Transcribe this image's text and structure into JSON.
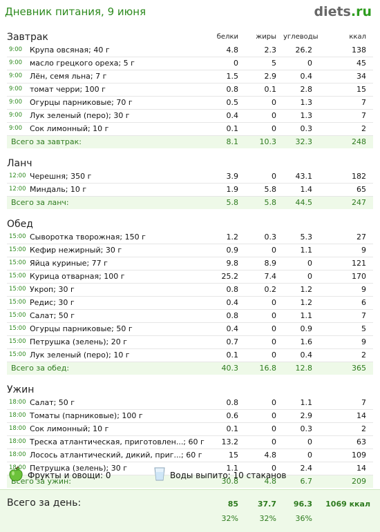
{
  "header": {
    "title": "Дневник питания, 9 июня",
    "logo_main": "diets",
    "logo_tld": ".ru"
  },
  "columns": {
    "protein": "белки",
    "fat": "жиры",
    "carbs": "углеводы",
    "kcal": "ккал"
  },
  "meals": [
    {
      "title": "Завтрак",
      "items": [
        {
          "time": "9:00",
          "name": "Крупа овсяная; 40 г",
          "p": "4.8",
          "f": "2.3",
          "c": "26.2",
          "k": "138"
        },
        {
          "time": "9:00",
          "name": "масло грецкого ореха; 5 г",
          "p": "0",
          "f": "5",
          "c": "0",
          "k": "45"
        },
        {
          "time": "9:00",
          "name": "Лён, семя льна; 7 г",
          "p": "1.5",
          "f": "2.9",
          "c": "0.4",
          "k": "34"
        },
        {
          "time": "9:00",
          "name": "томат черри; 100 г",
          "p": "0.8",
          "f": "0.1",
          "c": "2.8",
          "k": "15"
        },
        {
          "time": "9:00",
          "name": "Огурцы парниковые; 70 г",
          "p": "0.5",
          "f": "0",
          "c": "1.3",
          "k": "7"
        },
        {
          "time": "9:00",
          "name": "Лук зеленый (перо); 30 г",
          "p": "0.4",
          "f": "0",
          "c": "1.3",
          "k": "7"
        },
        {
          "time": "9:00",
          "name": "Сок лимонный; 10 г",
          "p": "0.1",
          "f": "0",
          "c": "0.3",
          "k": "2"
        }
      ],
      "total": {
        "label": "Всего за завтрак:",
        "p": "8.1",
        "f": "10.3",
        "c": "32.3",
        "k": "248"
      }
    },
    {
      "title": "Ланч",
      "items": [
        {
          "time": "12:00",
          "name": "Черешня; 350 г",
          "p": "3.9",
          "f": "0",
          "c": "43.1",
          "k": "182"
        },
        {
          "time": "12:00",
          "name": "Миндаль; 10 г",
          "p": "1.9",
          "f": "5.8",
          "c": "1.4",
          "k": "65"
        }
      ],
      "total": {
        "label": "Всего за ланч:",
        "p": "5.8",
        "f": "5.8",
        "c": "44.5",
        "k": "247"
      }
    },
    {
      "title": "Обед",
      "items": [
        {
          "time": "15:00",
          "name": "Сыворотка творожная; 150 г",
          "p": "1.2",
          "f": "0.3",
          "c": "5.3",
          "k": "27"
        },
        {
          "time": "15:00",
          "name": "Кефир нежирный; 30 г",
          "p": "0.9",
          "f": "0",
          "c": "1.1",
          "k": "9"
        },
        {
          "time": "15:00",
          "name": "Яйца куриные; 77 г",
          "p": "9.8",
          "f": "8.9",
          "c": "0",
          "k": "121"
        },
        {
          "time": "15:00",
          "name": "Курица отварная; 100 г",
          "p": "25.2",
          "f": "7.4",
          "c": "0",
          "k": "170"
        },
        {
          "time": "15:00",
          "name": "Укроп; 30 г",
          "p": "0.8",
          "f": "0.2",
          "c": "1.2",
          "k": "9"
        },
        {
          "time": "15:00",
          "name": "Редис; 30 г",
          "p": "0.4",
          "f": "0",
          "c": "1.2",
          "k": "6"
        },
        {
          "time": "15:00",
          "name": "Салат; 50 г",
          "p": "0.8",
          "f": "0",
          "c": "1.1",
          "k": "7"
        },
        {
          "time": "15:00",
          "name": "Огурцы парниковые; 50 г",
          "p": "0.4",
          "f": "0",
          "c": "0.9",
          "k": "5"
        },
        {
          "time": "15:00",
          "name": "Петрушка (зелень); 20 г",
          "p": "0.7",
          "f": "0",
          "c": "1.6",
          "k": "9"
        },
        {
          "time": "15:00",
          "name": "Лук зеленый (перо); 10 г",
          "p": "0.1",
          "f": "0",
          "c": "0.4",
          "k": "2"
        }
      ],
      "total": {
        "label": "Всего за обед:",
        "p": "40.3",
        "f": "16.8",
        "c": "12.8",
        "k": "365"
      }
    },
    {
      "title": "Ужин",
      "items": [
        {
          "time": "18:00",
          "name": "Салат; 50 г",
          "p": "0.8",
          "f": "0",
          "c": "1.1",
          "k": "7"
        },
        {
          "time": "18:00",
          "name": "Томаты (парниковые); 100 г",
          "p": "0.6",
          "f": "0",
          "c": "2.9",
          "k": "14"
        },
        {
          "time": "18:00",
          "name": "Сок лимонный; 10 г",
          "p": "0.1",
          "f": "0",
          "c": "0.3",
          "k": "2"
        },
        {
          "time": "18:00",
          "name": "Треска атлантическая, приготовлен...; 60 г",
          "p": "13.2",
          "f": "0",
          "c": "0",
          "k": "63"
        },
        {
          "time": "18:00",
          "name": "Лосось атлантический, дикий, приг...; 60 г",
          "p": "15",
          "f": "4.8",
          "c": "0",
          "k": "109"
        },
        {
          "time": "18:00",
          "name": "Петрушка (зелень); 30 г",
          "p": "1.1",
          "f": "0",
          "c": "2.4",
          "k": "14"
        }
      ],
      "total": {
        "label": "Всего за ужин:",
        "p": "30.8",
        "f": "4.8",
        "c": "6.7",
        "k": "209"
      }
    }
  ],
  "extras": {
    "fruit_label": "Фрукты и овощи: 0",
    "water_label": "Воды выпито: 10 стаканов"
  },
  "day": {
    "label": "Всего за день:",
    "p": "85",
    "f": "37.7",
    "c": "96.3",
    "k": "1069 ккал",
    "p_pct": "32%",
    "f_pct": "32%",
    "c_pct": "36%"
  },
  "colors": {
    "green_text": "#2d8a1e",
    "total_bg": "#eef9e8"
  },
  "icons": {
    "fruit": "green-apple-icon",
    "water": "water-glass-icon"
  }
}
